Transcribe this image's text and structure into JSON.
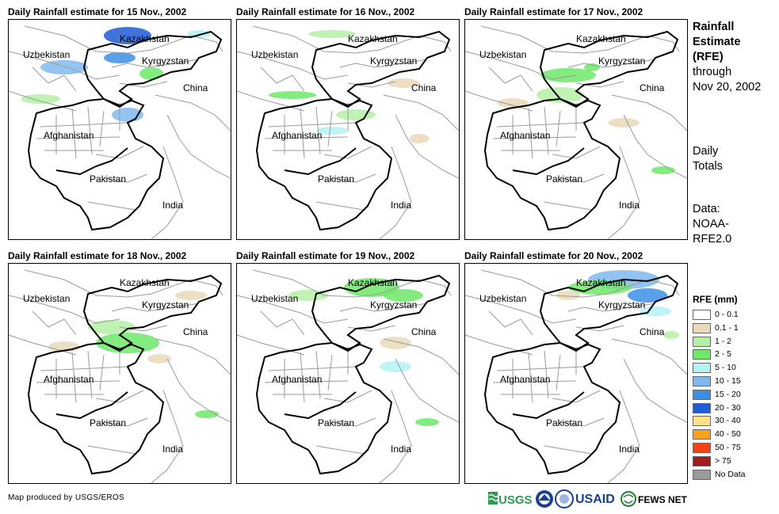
{
  "panels": [
    {
      "title": "Daily Rainfall estimate for 15 Nov., 2002",
      "day": 15
    },
    {
      "title": "Daily Rainfall estimate for 16 Nov., 2002",
      "day": 16
    },
    {
      "title": "Daily Rainfall estimate for 17 Nov., 2002",
      "day": 17
    },
    {
      "title": "Daily Rainfall estimate for 18 Nov., 2002",
      "day": 18
    },
    {
      "title": "Daily Rainfall estimate for 19 Nov., 2002",
      "day": 19
    },
    {
      "title": "Daily Rainfall estimate for 20 Nov., 2002",
      "day": 20
    }
  ],
  "map_labels": {
    "kazakhstan": "Kazakhstan",
    "uzbekistan": "Uzbekistan",
    "kyrgyzstan": "Kyrgyzstan",
    "china": "China",
    "afghanistan": "Afghanistan",
    "pakistan": "Pakistan",
    "india": "India"
  },
  "sidebar": {
    "title_line1": "Rainfall",
    "title_line2": "Estimate",
    "title_line3": "(RFE)",
    "through": "through",
    "date": "Nov 20, 2002",
    "daily": "Daily",
    "totals": "Totals",
    "data_label": "Data:",
    "data_source_1": "NOAA-",
    "data_source_2": "RFE2.0"
  },
  "legend": {
    "title": "RFE (mm)",
    "items": [
      {
        "label": "0 - 0.1",
        "color": "#ffffff"
      },
      {
        "label": "0.1 - 1",
        "color": "#ead9b8"
      },
      {
        "label": "1 - 2",
        "color": "#b5f0a6"
      },
      {
        "label": "2 - 5",
        "color": "#6ee86a"
      },
      {
        "label": "5 - 10",
        "color": "#b3f2f3"
      },
      {
        "label": "10 - 15",
        "color": "#7fb8ee"
      },
      {
        "label": "15 - 20",
        "color": "#3d8ee6"
      },
      {
        "label": "20 - 30",
        "color": "#1f5cd6"
      },
      {
        "label": "30 - 40",
        "color": "#fde28a"
      },
      {
        "label": "40 - 50",
        "color": "#f9a21a"
      },
      {
        "label": "50 - 75",
        "color": "#f2421a"
      },
      {
        "label": "> 75",
        "color": "#a51b20"
      },
      {
        "label": "No Data",
        "color": "#9b9b9b"
      }
    ]
  },
  "footer": {
    "credit": "Map produced by USGS/EROS",
    "usgs": "USGS",
    "usaid": "USAID",
    "fewsnet": "FEWS NET"
  }
}
